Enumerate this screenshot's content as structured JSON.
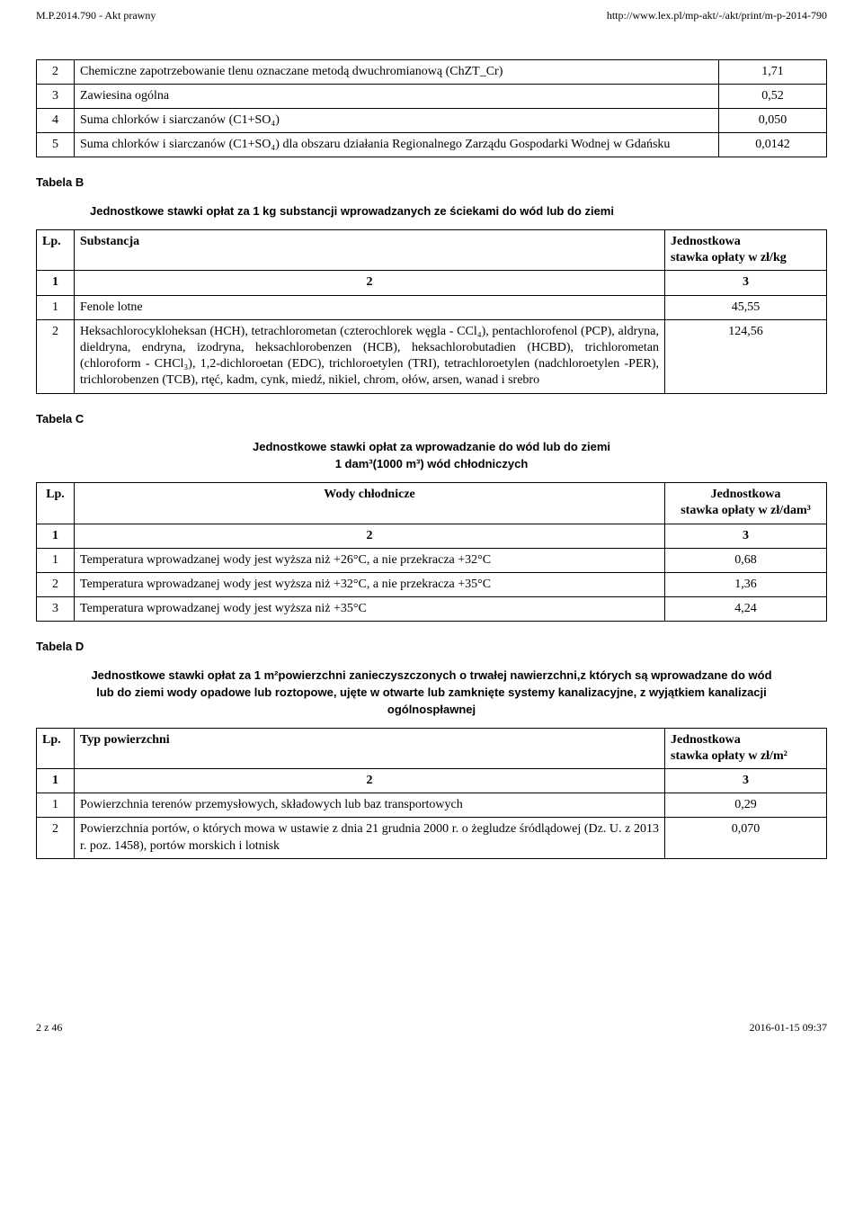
{
  "header": {
    "left": "M.P.2014.790 - Akt prawny",
    "right": "http://www.lex.pl/mp-akt/-/akt/print/m-p-2014-790"
  },
  "tableA": {
    "rows": [
      {
        "n": "2",
        "desc": "Chemiczne zapotrzebowanie tlenu oznaczane metodą dwuchromianową (ChZT_Cr)",
        "val": "1,71"
      },
      {
        "n": "3",
        "desc": "Zawiesina ogólna",
        "val": "0,52"
      },
      {
        "n": "4",
        "desc": "Suma chlorków i siarczanów (C1+SO₄)",
        "val": "0,050"
      },
      {
        "n": "5",
        "desc": "Suma chlorków i siarczanów (C1+SO₄) dla obszaru działania Regionalnego Zarządu Gospodarki Wodnej w Gdańsku",
        "val": "0,0142"
      }
    ]
  },
  "tabelaB": {
    "label": "Tabela B",
    "title": "Jednostkowe stawki opłat za 1 kg substancji wprowadzanych ze ściekami do wód lub do ziemi",
    "head": {
      "lp": "Lp.",
      "c2": "Substancja",
      "c3_l1": "Jednostkowa",
      "c3_l2": "stawka opłaty w zł/kg"
    },
    "numrow": {
      "a": "1",
      "b": "2",
      "c": "3"
    },
    "rows": [
      {
        "n": "1",
        "desc": "Fenole lotne",
        "val": "45,55"
      },
      {
        "n": "2",
        "desc": "Heksachlorocykloheksan (HCH), tetrachlorometan (czterochlorek węgla - CCl₄), pentachlorofenol (PCP), aldryna, dieldryna, endryna, izodryna, heksachlorobenzen (HCB), heksachlorobutadien (HCBD), trichlorometan (chloroform - CHCl₃), 1,2-dichloroetan (EDC), trichloroetylen (TRI), tetrachloroetylen (nadchloroetylen -PER), trichlorobenzen (TCB), rtęć, kadm, cynk, miedź, nikiel, chrom, ołów, arsen, wanad i srebro",
        "val": "124,56"
      }
    ]
  },
  "tabelaC": {
    "label": "Tabela C",
    "title_l1": "Jednostkowe stawki opłat za wprowadzanie do wód lub do ziemi",
    "title_l2": "1 dam³(1000 m³) wód chłodniczych",
    "head": {
      "lp": "Lp.",
      "c2": "Wody chłodnicze",
      "c3_l1": "Jednostkowa",
      "c3_l2": "stawka opłaty w zł/dam³"
    },
    "numrow": {
      "a": "1",
      "b": "2",
      "c": "3"
    },
    "rows": [
      {
        "n": "1",
        "desc": "Temperatura wprowadzanej wody jest wyższa niż +26°C, a nie przekracza +32°C",
        "val": "0,68"
      },
      {
        "n": "2",
        "desc": "Temperatura wprowadzanej wody jest wyższa niż +32°C, a nie przekracza +35°C",
        "val": "1,36"
      },
      {
        "n": "3",
        "desc": "Temperatura wprowadzanej wody jest wyższa niż +35°C",
        "val": "4,24"
      }
    ]
  },
  "tabelaD": {
    "label": "Tabela D",
    "title": "Jednostkowe stawki opłat za 1 m²powierzchni zanieczyszczonych o trwałej nawierzchni,z których są wprowadzane do wód lub do ziemi wody opadowe lub roztopowe, ujęte w otwarte lub zamknięte systemy kanalizacyjne, z wyjątkiem kanalizacji ogólnospławnej",
    "head": {
      "lp": "Lp.",
      "c2": "Typ powierzchni",
      "c3_l1": "Jednostkowa",
      "c3_l2": "stawka opłaty w zł/m²"
    },
    "numrow": {
      "a": "1",
      "b": "2",
      "c": "3"
    },
    "rows": [
      {
        "n": "1",
        "desc": "Powierzchnia terenów przemysłowych, składowych lub baz transportowych",
        "val": "0,29"
      },
      {
        "n": "2",
        "desc": "Powierzchnia portów, o których mowa w ustawie z dnia 21 grudnia 2000 r. o żegludze śródlądowej (Dz. U. z 2013 r. poz. 1458), portów morskich i lotnisk",
        "val": "0,070"
      }
    ]
  },
  "footer": {
    "left": "2 z 46",
    "right": "2016-01-15 09:37"
  }
}
